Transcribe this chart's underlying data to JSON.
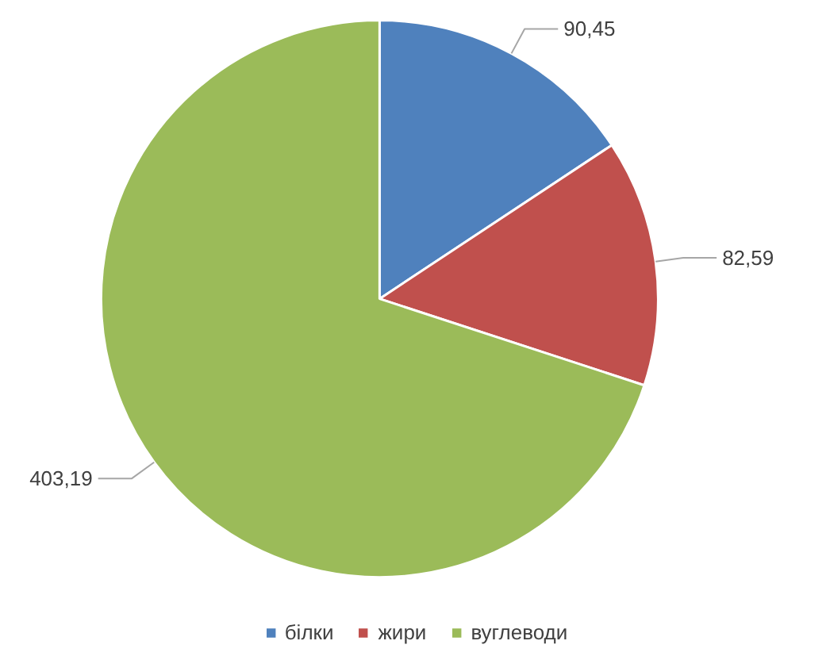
{
  "chart_data": {
    "type": "pie",
    "categories": [
      "білки",
      "жири",
      "вуглеводи"
    ],
    "values": [
      90.45,
      82.59,
      403.19
    ],
    "colors": [
      "#4f81bd",
      "#c0504d",
      "#9bbb59"
    ],
    "value_labels": [
      "90,45",
      "82,59",
      "403,19"
    ],
    "legend": "bottom"
  }
}
